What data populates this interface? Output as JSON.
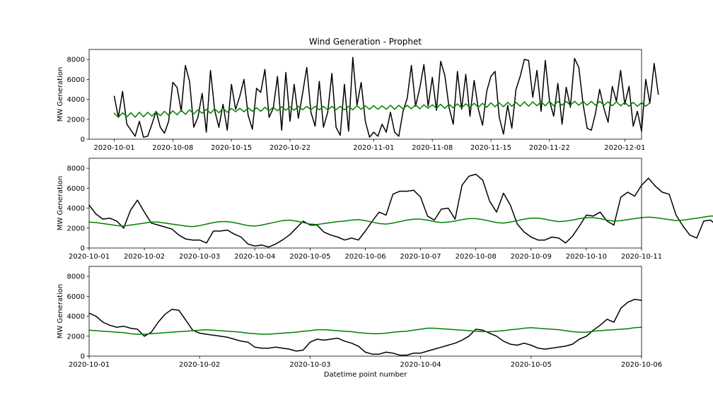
{
  "chart_data": [
    {
      "type": "line",
      "title": "Wind Generation - Prophet",
      "xlabel": "",
      "ylabel": "MW Generation",
      "ylim": [
        0,
        9000
      ],
      "yticks": [
        0,
        2000,
        4000,
        6000,
        8000
      ],
      "xlim": [
        "2020-09-28",
        "2020-12-03"
      ],
      "xticks": [
        "2020-10-01",
        "2020-10-08",
        "2020-10-15",
        "2020-10-22",
        "2020-11-01",
        "2020-11-08",
        "2020-11-15",
        "2020-11-22",
        "2020-12-01"
      ],
      "x_format": "date",
      "series": [
        {
          "color": "#000000",
          "start": "2020-10-01",
          "step_days": 0.5,
          "values": [
            4300,
            2200,
            4800,
            1500,
            900,
            300,
            1800,
            200,
            300,
            1500,
            2800,
            1200,
            600,
            1800,
            5700,
            5200,
            2800,
            7400,
            5800,
            1200,
            2200,
            4600,
            700,
            6900,
            2900,
            1200,
            3500,
            900,
            5500,
            3000,
            4300,
            6000,
            2400,
            1000,
            5100,
            4700,
            7000,
            2200,
            3100,
            6300,
            900,
            6700,
            1800,
            5500,
            2100,
            4600,
            7200,
            2700,
            1300,
            5800,
            1200,
            2700,
            6600,
            1200,
            400,
            5500,
            800,
            8200,
            3400,
            5700,
            1800,
            200,
            700,
            300,
            1500,
            700,
            2700,
            700,
            300,
            2800,
            4100,
            7400,
            3300,
            5100,
            7500,
            3300,
            6200,
            2900,
            7800,
            6400,
            3200,
            1500,
            6800,
            3000,
            6500,
            2300,
            5900,
            3000,
            1400,
            4800,
            6300,
            6800,
            2200,
            500,
            3400,
            1100,
            5000,
            6300,
            8000,
            7900,
            4200,
            6900,
            2800,
            7900,
            3900,
            2300,
            5600,
            1500,
            5200,
            3200,
            8100,
            7200,
            3600,
            1100,
            900,
            2600,
            5000,
            3100,
            1700,
            5300,
            3800,
            6900,
            3500,
            5300,
            1300,
            2800,
            800,
            6000,
            3600,
            7600,
            4500
          ]
        },
        {
          "color": "#008000",
          "start": "2020-10-01",
          "step_days": 0.5,
          "values": [
            2600,
            2200,
            2650,
            2250,
            2650,
            2200,
            2700,
            2250,
            2700,
            2300,
            2750,
            2350,
            2800,
            2400,
            2850,
            2450,
            2900,
            2500,
            2950,
            2550,
            2950,
            2600,
            3000,
            2600,
            3050,
            2650,
            3100,
            2700,
            3100,
            2750,
            3100,
            2750,
            3150,
            2800,
            3150,
            2800,
            3200,
            2850,
            3200,
            2850,
            3250,
            2900,
            3250,
            2900,
            3300,
            2950,
            3300,
            2950,
            3300,
            2950,
            3300,
            2950,
            3300,
            2950,
            3300,
            2950,
            3300,
            2950,
            3350,
            3000,
            3350,
            3000,
            3350,
            3000,
            3350,
            3000,
            3400,
            3000,
            3400,
            3050,
            3400,
            3050,
            3450,
            3050,
            3450,
            3100,
            3450,
            3100,
            3500,
            3100,
            3500,
            3150,
            3550,
            3150,
            3550,
            3200,
            3600,
            3200,
            3600,
            3200,
            3650,
            3250,
            3650,
            3250,
            3700,
            3300,
            3700,
            3300,
            3750,
            3300,
            3750,
            3350,
            3750,
            3350,
            3800,
            3350,
            3800,
            3400,
            3800,
            3400,
            3800,
            3400,
            3800,
            3400,
            3800,
            3400,
            3800,
            3400,
            3750,
            3350,
            3750,
            3350,
            3700,
            3300,
            3700,
            3300,
            3650,
            3300,
            3650
          ]
        }
      ]
    },
    {
      "type": "line",
      "title": "",
      "xlabel": "",
      "ylabel": "MW Generation",
      "ylim": [
        0,
        9000
      ],
      "yticks": [
        0,
        2000,
        4000,
        6000,
        8000
      ],
      "xlim": [
        "2020-10-01",
        "2020-10-11"
      ],
      "xticks": [
        "2020-10-01",
        "2020-10-02",
        "2020-10-03",
        "2020-10-04",
        "2020-10-05",
        "2020-10-06",
        "2020-10-07",
        "2020-10-08",
        "2020-10-09",
        "2020-10-10",
        "2020-10-11"
      ],
      "x_format": "date",
      "series": [
        {
          "color": "#000000",
          "start": "2020-10-01",
          "step_days": 0.125,
          "values": [
            4300,
            3400,
            2900,
            3000,
            2700,
            2000,
            3800,
            4800,
            3600,
            2500,
            2300,
            2100,
            1900,
            1300,
            900,
            800,
            800,
            500,
            1700,
            1700,
            1800,
            1400,
            1100,
            400,
            200,
            300,
            100,
            400,
            800,
            1300,
            2000,
            2700,
            2300,
            2300,
            1600,
            1300,
            1100,
            800,
            1000,
            800,
            1700,
            2700,
            3600,
            3300,
            5400,
            5700,
            5700,
            5800,
            5100,
            3200,
            2800,
            3900,
            4000,
            2900,
            6300,
            7200,
            7400,
            6800,
            4700,
            3600,
            5500,
            4300,
            2400,
            1600,
            1100,
            800,
            800,
            1100,
            1000,
            500,
            1200,
            2200,
            3300,
            3200,
            3600,
            2700,
            2300,
            5100,
            5600,
            5200,
            6300,
            7000,
            6200,
            5600,
            5400,
            3300,
            2200,
            1300,
            1000,
            2700,
            2800,
            2200
          ]
        },
        {
          "color": "#008000",
          "start": "2020-10-01",
          "step_days": 0.125,
          "values": [
            2600,
            2550,
            2450,
            2350,
            2250,
            2200,
            2300,
            2400,
            2500,
            2600,
            2600,
            2500,
            2400,
            2300,
            2200,
            2150,
            2250,
            2400,
            2550,
            2650,
            2650,
            2550,
            2400,
            2250,
            2200,
            2300,
            2450,
            2600,
            2750,
            2800,
            2700,
            2550,
            2400,
            2350,
            2450,
            2550,
            2650,
            2700,
            2800,
            2850,
            2750,
            2600,
            2450,
            2400,
            2500,
            2650,
            2800,
            2900,
            2900,
            2800,
            2650,
            2550,
            2600,
            2700,
            2850,
            2950,
            2950,
            2850,
            2700,
            2550,
            2500,
            2600,
            2750,
            2900,
            3000,
            3000,
            2900,
            2750,
            2650,
            2700,
            2800,
            2950,
            3050,
            3050,
            2950,
            2800,
            2700,
            2750,
            2850,
            2950,
            3050,
            3100,
            3050,
            2950,
            2850,
            2750,
            2800,
            2900,
            3000,
            3100,
            3200,
            3200
          ]
        }
      ]
    },
    {
      "type": "line",
      "title": "",
      "xlabel": "Datetime point number",
      "ylabel": "MW Generation",
      "ylim": [
        0,
        9000
      ],
      "yticks": [
        0,
        2000,
        4000,
        6000,
        8000
      ],
      "xlim": [
        "2020-10-01",
        "2020-10-06"
      ],
      "xticks": [
        "2020-10-01",
        "2020-10-02",
        "2020-10-03",
        "2020-10-04",
        "2020-10-05",
        "2020-10-06"
      ],
      "x_format": "date",
      "series": [
        {
          "color": "#000000",
          "start": "2020-10-01",
          "step_days": 0.0625,
          "values": [
            4300,
            4000,
            3400,
            3100,
            2900,
            3000,
            2800,
            2700,
            2000,
            2400,
            3400,
            4200,
            4700,
            4600,
            3600,
            2600,
            2300,
            2200,
            2100,
            2000,
            1900,
            1700,
            1500,
            1400,
            900,
            800,
            800,
            900,
            800,
            700,
            500,
            600,
            1400,
            1700,
            1600,
            1700,
            1800,
            1500,
            1300,
            1000,
            400,
            200,
            200,
            400,
            300,
            100,
            100,
            300,
            300,
            500,
            700,
            900,
            1100,
            1300,
            1600,
            2000,
            2700,
            2600,
            2300,
            2000,
            1500,
            1200,
            1100,
            1300,
            1100,
            800,
            700,
            800,
            900,
            1000,
            1200,
            1700,
            2000,
            2600,
            3100,
            3700,
            3400,
            4800,
            5400,
            5700,
            5600
          ]
        },
        {
          "color": "#008000",
          "start": "2020-10-01",
          "step_days": 0.0625,
          "values": [
            2600,
            2550,
            2500,
            2450,
            2400,
            2350,
            2250,
            2200,
            2200,
            2250,
            2300,
            2350,
            2400,
            2450,
            2500,
            2550,
            2600,
            2650,
            2600,
            2550,
            2500,
            2450,
            2400,
            2300,
            2250,
            2200,
            2200,
            2250,
            2300,
            2350,
            2400,
            2500,
            2550,
            2650,
            2650,
            2600,
            2550,
            2500,
            2450,
            2350,
            2300,
            2250,
            2250,
            2300,
            2400,
            2450,
            2500,
            2600,
            2700,
            2800,
            2800,
            2750,
            2700,
            2650,
            2600,
            2550,
            2500,
            2450,
            2450,
            2500,
            2550,
            2650,
            2700,
            2800,
            2850,
            2800,
            2750,
            2700,
            2650,
            2550,
            2450,
            2400,
            2400,
            2500,
            2550,
            2600,
            2650,
            2700,
            2750,
            2850,
            2900
          ]
        }
      ]
    }
  ]
}
